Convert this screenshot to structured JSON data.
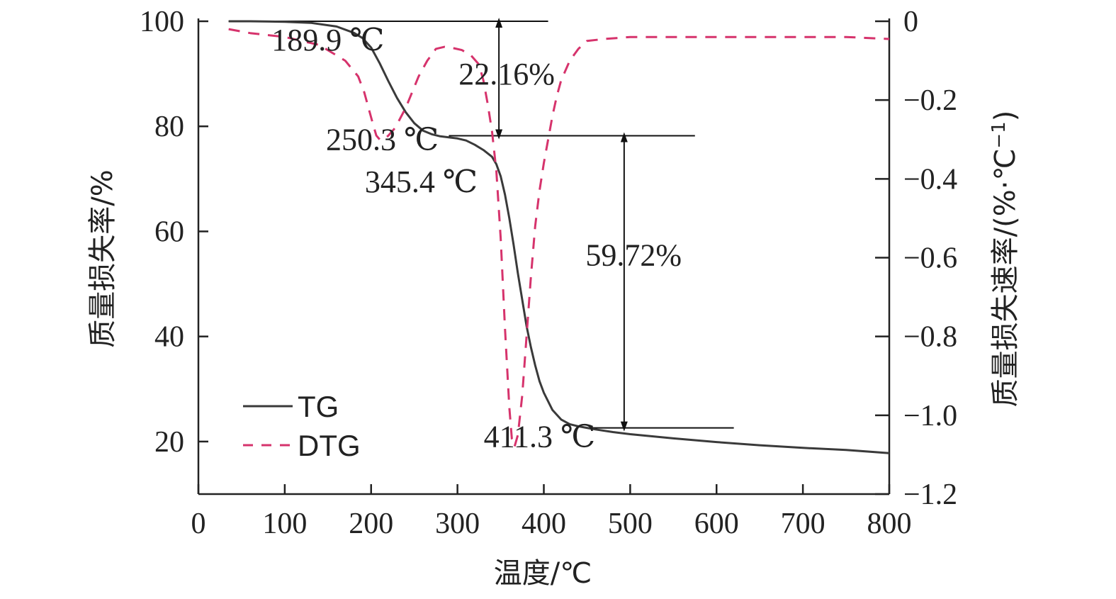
{
  "chart_data": {
    "type": "line",
    "xlabel": "温度/℃",
    "ylabel_left": "质量损失率/%",
    "ylabel_right": "质量损失速率/(%·℃",
    "ylabel_right_sup": "−1",
    "ylabel_right_close": ")",
    "xlim": [
      0,
      800
    ],
    "ylim_left": [
      10,
      100
    ],
    "ylim_right": [
      -1.2,
      0
    ],
    "x_ticks": [
      0,
      100,
      200,
      300,
      400,
      500,
      600,
      700,
      800
    ],
    "x_tick_labels": [
      "0",
      "100",
      "200",
      "300",
      "400",
      "500",
      "600",
      "700",
      "800"
    ],
    "y_left_ticks": [
      20,
      40,
      60,
      80,
      100
    ],
    "y_left_tick_labels": [
      "20",
      "40",
      "60",
      "80",
      "100"
    ],
    "y_right_ticks": [
      -1.2,
      -1.0,
      -0.8,
      -0.6,
      -0.4,
      -0.2,
      0
    ],
    "y_right_tick_labels": [
      "−1.2",
      "−1.0",
      "−0.8",
      "−0.6",
      "−0.4",
      "−0.2",
      "0"
    ],
    "grid": false,
    "legend_position": "bottom-left",
    "series": [
      {
        "name": "TG",
        "axis": "left",
        "style": "solid",
        "color": "#3a3a3a",
        "x": [
          35,
          60,
          100,
          130,
          160,
          180,
          190,
          200,
          210,
          220,
          230,
          240,
          250,
          260,
          270,
          280,
          290,
          300,
          310,
          320,
          330,
          340,
          345,
          350,
          355,
          360,
          365,
          370,
          375,
          380,
          385,
          390,
          395,
          400,
          410,
          420,
          430,
          440,
          450,
          460,
          480,
          500,
          550,
          600,
          650,
          700,
          750,
          800
        ],
        "y": [
          100,
          100,
          99.9,
          99.7,
          99.0,
          97.8,
          96.8,
          95.0,
          92.0,
          88.6,
          85.4,
          82.7,
          80.6,
          79.2,
          78.5,
          78.1,
          77.9,
          77.7,
          77.3,
          76.5,
          75.5,
          74.2,
          72.8,
          70.5,
          67.0,
          62.5,
          57.5,
          52.0,
          47.0,
          42.0,
          38.0,
          34.5,
          31.5,
          29.3,
          26.0,
          24.2,
          23.3,
          22.9,
          22.6,
          22.3,
          21.8,
          21.4,
          20.6,
          19.9,
          19.3,
          18.8,
          18.4,
          17.8
        ]
      },
      {
        "name": "DTG",
        "axis": "right",
        "style": "dashed",
        "color": "#d6336c",
        "x": [
          35,
          60,
          100,
          140,
          170,
          185,
          192,
          197,
          202,
          206,
          210,
          215,
          220,
          228,
          240,
          255,
          265,
          275,
          285,
          295,
          305,
          315,
          325,
          330,
          335,
          340,
          345,
          350,
          355,
          360,
          363,
          366,
          370,
          375,
          380,
          385,
          390,
          395,
          400,
          405,
          410,
          415,
          420,
          430,
          440,
          450,
          470,
          500,
          550,
          600,
          650,
          700,
          750,
          800
        ],
        "y": [
          -0.02,
          -0.03,
          -0.04,
          -0.06,
          -0.1,
          -0.14,
          -0.18,
          -0.22,
          -0.26,
          -0.29,
          -0.3,
          -0.3,
          -0.29,
          -0.27,
          -0.22,
          -0.14,
          -0.1,
          -0.07,
          -0.065,
          -0.068,
          -0.073,
          -0.085,
          -0.11,
          -0.15,
          -0.21,
          -0.28,
          -0.38,
          -0.55,
          -0.78,
          -0.98,
          -1.06,
          -1.08,
          -1.05,
          -0.95,
          -0.8,
          -0.65,
          -0.52,
          -0.43,
          -0.36,
          -0.3,
          -0.24,
          -0.19,
          -0.15,
          -0.1,
          -0.07,
          -0.05,
          -0.045,
          -0.04,
          -0.04,
          -0.04,
          -0.04,
          -0.04,
          -0.04,
          -0.045
        ]
      }
    ],
    "annotations": [
      {
        "text": "189.9 ℃",
        "x": 150,
        "y": 94.5
      },
      {
        "text": "250.3 ℃",
        "x": 213,
        "y": 75.5
      },
      {
        "text": "345.4 ℃",
        "x": 258,
        "y": 67.5
      },
      {
        "text": "411.3 ℃",
        "x": 395,
        "y": 19.0
      },
      {
        "text": "22.16%",
        "x": 357,
        "y": 88.0
      },
      {
        "text": "59.72%",
        "x": 504,
        "y": 53.5
      }
    ],
    "reference_lines": [
      {
        "x1": 35,
        "x2": 405,
        "y": 100
      },
      {
        "x1": 290,
        "x2": 575,
        "y": 78.2
      },
      {
        "x1": 450,
        "x2": 620,
        "y": 22.6
      }
    ],
    "arrows": [
      {
        "x": 348,
        "y1": 100,
        "y2": 78.2
      },
      {
        "x": 493,
        "y1": 78.2,
        "y2": 22.6
      }
    ]
  }
}
